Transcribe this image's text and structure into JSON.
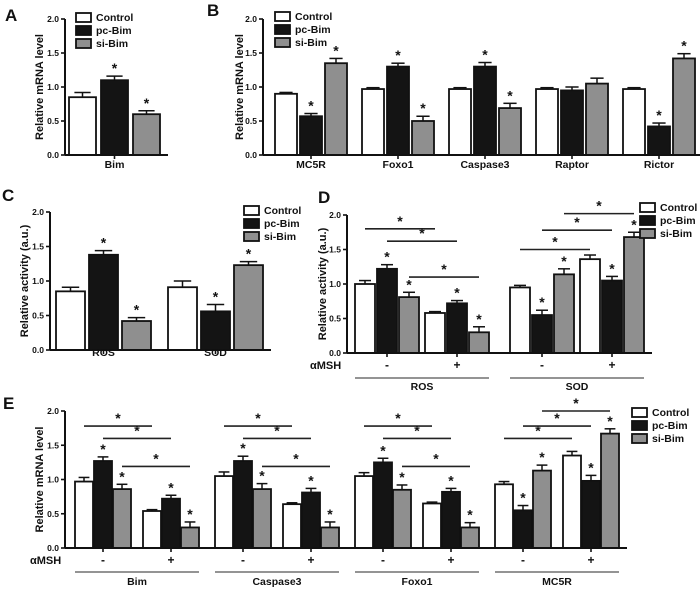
{
  "figure": {
    "panel_letters": {
      "A": "A",
      "B": "B",
      "C": "C",
      "D": "D",
      "E": "E"
    }
  },
  "colors": {
    "control_fill": "#ffffff",
    "pcbim_fill": "#141414",
    "sibim_fill": "#8f8f8f",
    "stroke": "#111111",
    "bracket": "#222222",
    "underline": "#949494"
  },
  "legend_labels": [
    "Control",
    "pc-Bim",
    "si-Bim"
  ],
  "chart_data": [
    {
      "id": "A",
      "type": "bar",
      "ylabel": "Relative mRNA level",
      "ylim": [
        0,
        2
      ],
      "yticks": [
        "0.0",
        "0.5",
        "1.0",
        "1.5",
        "2.0"
      ],
      "series": [
        "Control",
        "pc-Bim",
        "si-Bim"
      ],
      "legend_position": "inside-top-left",
      "clusters": [
        {
          "label": "Bim",
          "values": [
            0.85,
            1.1,
            0.6
          ],
          "errors": [
            0.07,
            0.06,
            0.05
          ],
          "sig": [
            false,
            true,
            true
          ]
        }
      ]
    },
    {
      "id": "B",
      "type": "bar",
      "ylabel": "Relative mRNA level",
      "ylim": [
        0,
        2
      ],
      "yticks": [
        "0.0",
        "0.5",
        "1.0",
        "1.5",
        "2.0"
      ],
      "series": [
        "Control",
        "pc-Bim",
        "si-Bim"
      ],
      "legend_position": "inside-top-left",
      "clusters": [
        {
          "label": "MC5R",
          "values": [
            0.9,
            0.57,
            1.35
          ],
          "errors": [
            0.02,
            0.04,
            0.07
          ],
          "sig": [
            false,
            true,
            true
          ]
        },
        {
          "label": "Foxo1",
          "values": [
            0.97,
            1.3,
            0.5
          ],
          "errors": [
            0.02,
            0.05,
            0.07
          ],
          "sig": [
            false,
            true,
            true
          ]
        },
        {
          "label": "Caspase3",
          "values": [
            0.97,
            1.3,
            0.69
          ],
          "errors": [
            0.02,
            0.06,
            0.07
          ],
          "sig": [
            false,
            true,
            true
          ]
        },
        {
          "label": "Raptor",
          "values": [
            0.97,
            0.95,
            1.05
          ],
          "errors": [
            0.02,
            0.05,
            0.08
          ],
          "sig": [
            false,
            false,
            false
          ]
        },
        {
          "label": "Rictor",
          "values": [
            0.97,
            0.42,
            1.42
          ],
          "errors": [
            0.02,
            0.05,
            0.07
          ],
          "sig": [
            false,
            true,
            true
          ]
        }
      ]
    },
    {
      "id": "C",
      "type": "bar",
      "ylabel": "Relative activity (a.u.)",
      "ylim": [
        0,
        2
      ],
      "yticks": [
        "0.0",
        "0.5",
        "1.0",
        "1.5",
        "2.0"
      ],
      "series": [
        "Control",
        "pc-Bim",
        "si-Bim"
      ],
      "legend_position": "inside-top-right",
      "clusters": [
        {
          "label": "ROS",
          "values": [
            0.85,
            1.38,
            0.42
          ],
          "errors": [
            0.06,
            0.06,
            0.05
          ],
          "sig": [
            false,
            true,
            true
          ]
        },
        {
          "label": "SOD",
          "values": [
            0.91,
            0.56,
            1.23
          ],
          "errors": [
            0.09,
            0.1,
            0.05
          ],
          "sig": [
            false,
            true,
            true
          ]
        }
      ]
    },
    {
      "id": "D",
      "type": "bar",
      "ylabel": "Relative activity (a.u.)",
      "ylim": [
        0,
        2
      ],
      "yticks": [
        "0.0",
        "0.5",
        "1.0",
        "1.5",
        "2.0"
      ],
      "series": [
        "Control",
        "pc-Bim",
        "si-Bim"
      ],
      "legend_position": "outside-right",
      "xaxis_row_label": "αMSH",
      "clusters": [
        {
          "label": "-",
          "values": [
            1.0,
            1.22,
            0.81
          ],
          "errors": [
            0.05,
            0.06,
            0.07
          ],
          "sig": [
            false,
            true,
            true
          ]
        },
        {
          "label": "+",
          "values": [
            0.58,
            0.72,
            0.3
          ],
          "errors": [
            0.02,
            0.04,
            0.08
          ],
          "sig": [
            false,
            true,
            true
          ]
        },
        {
          "label": "-",
          "values": [
            0.95,
            0.55,
            1.14
          ],
          "errors": [
            0.03,
            0.07,
            0.08
          ],
          "sig": [
            false,
            true,
            true
          ]
        },
        {
          "label": "+",
          "values": [
            1.36,
            1.05,
            1.68
          ],
          "errors": [
            0.06,
            0.06,
            0.07
          ],
          "sig": [
            false,
            true,
            true
          ]
        }
      ],
      "spans": [
        {
          "label": "ROS",
          "from": 0,
          "to": 1
        },
        {
          "label": "SOD",
          "from": 2,
          "to": 3
        }
      ],
      "brackets": [
        {
          "a": [
            0,
            0
          ],
          "b": [
            1,
            0
          ],
          "y": 1.8
        },
        {
          "a": [
            0,
            1
          ],
          "b": [
            1,
            1
          ],
          "y": 1.62
        },
        {
          "a": [
            0,
            2
          ],
          "b": [
            1,
            2
          ],
          "y": 1.1
        },
        {
          "a": [
            2,
            0
          ],
          "b": [
            3,
            0
          ],
          "y": 1.5
        },
        {
          "a": [
            2,
            1
          ],
          "b": [
            3,
            1
          ],
          "y": 1.78
        },
        {
          "a": [
            2,
            2
          ],
          "b": [
            3,
            2
          ],
          "y": 2.02
        }
      ]
    },
    {
      "id": "E",
      "type": "bar",
      "ylabel": "Relative mRNA level",
      "ylim": [
        0,
        2
      ],
      "yticks": [
        "0.0",
        "0.5",
        "1.0",
        "1.5",
        "2.0"
      ],
      "series": [
        "Control",
        "pc-Bim",
        "si-Bim"
      ],
      "legend_position": "outside-right",
      "xaxis_row_label": "αMSH",
      "clusters": [
        {
          "label": "-",
          "values": [
            0.97,
            1.27,
            0.86
          ],
          "errors": [
            0.06,
            0.06,
            0.07
          ],
          "sig": [
            false,
            true,
            true
          ]
        },
        {
          "label": "+",
          "values": [
            0.54,
            0.72,
            0.3
          ],
          "errors": [
            0.02,
            0.05,
            0.08
          ],
          "sig": [
            false,
            true,
            true
          ]
        },
        {
          "label": "-",
          "values": [
            1.05,
            1.27,
            0.86
          ],
          "errors": [
            0.06,
            0.07,
            0.08
          ],
          "sig": [
            false,
            true,
            true
          ]
        },
        {
          "label": "+",
          "values": [
            0.64,
            0.81,
            0.3
          ],
          "errors": [
            0.02,
            0.06,
            0.08
          ],
          "sig": [
            false,
            true,
            true
          ]
        },
        {
          "label": "-",
          "values": [
            1.05,
            1.25,
            0.85
          ],
          "errors": [
            0.05,
            0.06,
            0.07
          ],
          "sig": [
            false,
            true,
            true
          ]
        },
        {
          "label": "+",
          "values": [
            0.65,
            0.82,
            0.3
          ],
          "errors": [
            0.02,
            0.05,
            0.07
          ],
          "sig": [
            false,
            true,
            true
          ]
        },
        {
          "label": "-",
          "values": [
            0.93,
            0.55,
            1.13
          ],
          "errors": [
            0.04,
            0.07,
            0.08
          ],
          "sig": [
            false,
            true,
            true
          ]
        },
        {
          "label": "+",
          "values": [
            1.35,
            0.98,
            1.67
          ],
          "errors": [
            0.06,
            0.08,
            0.07
          ],
          "sig": [
            false,
            true,
            true
          ]
        }
      ],
      "spans": [
        {
          "label": "Bim",
          "from": 0,
          "to": 1
        },
        {
          "label": "Caspase3",
          "from": 2,
          "to": 3
        },
        {
          "label": "Foxo1",
          "from": 4,
          "to": 5
        },
        {
          "label": "MC5R",
          "from": 6,
          "to": 7
        }
      ],
      "brackets": [
        {
          "a": [
            0,
            0
          ],
          "b": [
            1,
            0
          ],
          "y": 1.78
        },
        {
          "a": [
            0,
            1
          ],
          "b": [
            1,
            1
          ],
          "y": 1.6
        },
        {
          "a": [
            0,
            2
          ],
          "b": [
            1,
            2
          ],
          "y": 1.19
        },
        {
          "a": [
            2,
            0
          ],
          "b": [
            3,
            0
          ],
          "y": 1.78
        },
        {
          "a": [
            2,
            1
          ],
          "b": [
            3,
            1
          ],
          "y": 1.6
        },
        {
          "a": [
            2,
            2
          ],
          "b": [
            3,
            2
          ],
          "y": 1.19
        },
        {
          "a": [
            4,
            0
          ],
          "b": [
            5,
            0
          ],
          "y": 1.78
        },
        {
          "a": [
            4,
            1
          ],
          "b": [
            5,
            1
          ],
          "y": 1.6
        },
        {
          "a": [
            4,
            2
          ],
          "b": [
            5,
            2
          ],
          "y": 1.19
        },
        {
          "a": [
            6,
            0
          ],
          "b": [
            7,
            0
          ],
          "y": 1.6
        },
        {
          "a": [
            6,
            1
          ],
          "b": [
            7,
            1
          ],
          "y": 1.78
        },
        {
          "a": [
            6,
            2
          ],
          "b": [
            7,
            2
          ],
          "y": 2.0
        }
      ]
    }
  ]
}
